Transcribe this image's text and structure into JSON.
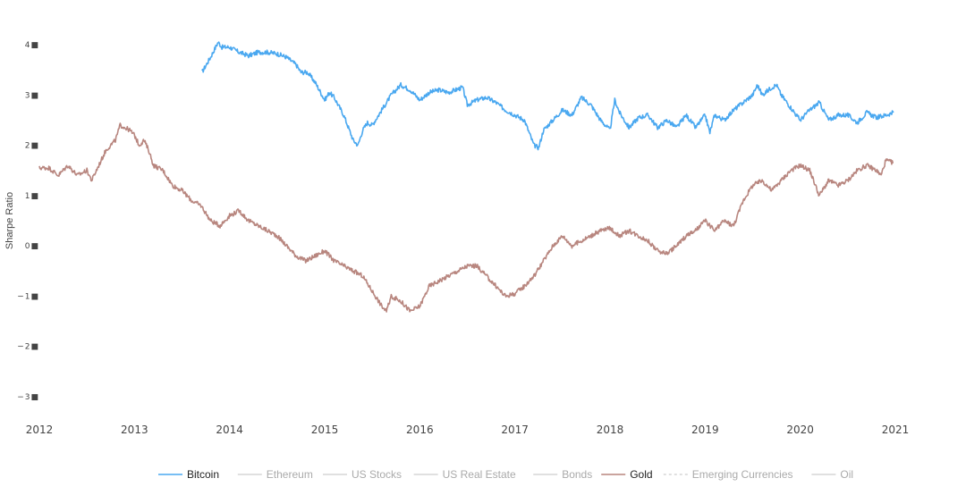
{
  "chart_data": {
    "type": "line",
    "title": "",
    "ylabel": "Sharpe Ratio",
    "xlabel": "",
    "ylim": [
      -3.5,
      4.3
    ],
    "xlim": [
      2012.0,
      2021.0
    ],
    "grid": false,
    "legend_position": "bottom",
    "y_ticks": [
      {
        "value": 4,
        "label": "4■"
      },
      {
        "value": 3,
        "label": "3■"
      },
      {
        "value": 2,
        "label": "2■"
      },
      {
        "value": 1,
        "label": "1■"
      },
      {
        "value": 0,
        "label": "0■"
      },
      {
        "value": -1,
        "label": "−1■"
      },
      {
        "value": -2,
        "label": "−2■"
      },
      {
        "value": -3,
        "label": "−3■"
      }
    ],
    "x_ticks": [
      {
        "value": 2012,
        "label": "2012"
      },
      {
        "value": 2013,
        "label": "2013"
      },
      {
        "value": 2014,
        "label": "2014"
      },
      {
        "value": 2015,
        "label": "2015"
      },
      {
        "value": 2016,
        "label": "2016"
      },
      {
        "value": 2017,
        "label": "2017"
      },
      {
        "value": 2018,
        "label": "2018"
      },
      {
        "value": 2019,
        "label": "2019"
      },
      {
        "value": 2020,
        "label": "2020"
      },
      {
        "value": 2021,
        "label": "2021"
      }
    ],
    "legend": [
      {
        "name": "Bitcoin",
        "color": "#4aa8f0",
        "active": true,
        "dashed": false
      },
      {
        "name": "Ethereum",
        "color": "#d6d6d6",
        "active": false,
        "dashed": false
      },
      {
        "name": "US Stocks",
        "color": "#d6d6d6",
        "active": false,
        "dashed": false
      },
      {
        "name": "US Real Estate",
        "color": "#d6d6d6",
        "active": false,
        "dashed": false
      },
      {
        "name": "Bonds",
        "color": "#d6d6d6",
        "active": false,
        "dashed": false
      },
      {
        "name": "Gold",
        "color": "#b8867f",
        "active": true,
        "dashed": false
      },
      {
        "name": "Emerging Currencies",
        "color": "#d6d6d6",
        "active": false,
        "dashed": true
      },
      {
        "name": "Oil",
        "color": "#d6d6d6",
        "active": false,
        "dashed": false
      }
    ],
    "series": [
      {
        "name": "Bitcoin",
        "color": "#4aa8f0",
        "x": [
          2013.71,
          2013.8,
          2013.88,
          2013.92,
          2014.0,
          2014.1,
          2014.2,
          2014.3,
          2014.4,
          2014.5,
          2014.6,
          2014.7,
          2014.75,
          2014.82,
          2014.9,
          2015.0,
          2015.05,
          2015.1,
          2015.2,
          2015.3,
          2015.35,
          2015.4,
          2015.45,
          2015.5,
          2015.6,
          2015.7,
          2015.8,
          2015.9,
          2016.0,
          2016.1,
          2016.2,
          2016.3,
          2016.45,
          2016.5,
          2016.6,
          2016.7,
          2016.8,
          2016.9,
          2017.0,
          2017.1,
          2017.2,
          2017.25,
          2017.3,
          2017.4,
          2017.5,
          2017.6,
          2017.7,
          2017.8,
          2017.9,
          2018.0,
          2018.05,
          2018.1,
          2018.2,
          2018.3,
          2018.4,
          2018.5,
          2018.6,
          2018.7,
          2018.8,
          2018.9,
          2019.0,
          2019.05,
          2019.1,
          2019.2,
          2019.3,
          2019.4,
          2019.5,
          2019.55,
          2019.6,
          2019.7,
          2019.75,
          2019.8,
          2019.9,
          2020.0,
          2020.1,
          2020.2,
          2020.3,
          2020.4,
          2020.5,
          2020.6,
          2020.7,
          2020.8,
          2020.9,
          2020.98
        ],
        "y": [
          3.45,
          3.75,
          4.05,
          3.95,
          3.95,
          3.85,
          3.78,
          3.85,
          3.85,
          3.82,
          3.75,
          3.6,
          3.45,
          3.45,
          3.25,
          2.9,
          3.05,
          2.95,
          2.6,
          2.1,
          2.0,
          2.3,
          2.45,
          2.4,
          2.7,
          3.0,
          3.2,
          3.1,
          2.9,
          3.05,
          3.1,
          3.05,
          3.15,
          2.8,
          2.9,
          2.95,
          2.85,
          2.7,
          2.6,
          2.5,
          2.0,
          1.95,
          2.3,
          2.5,
          2.7,
          2.6,
          2.95,
          2.8,
          2.5,
          2.3,
          2.9,
          2.65,
          2.35,
          2.55,
          2.6,
          2.35,
          2.5,
          2.35,
          2.6,
          2.35,
          2.6,
          2.25,
          2.6,
          2.5,
          2.7,
          2.85,
          3.0,
          3.2,
          3.0,
          3.15,
          3.2,
          3.0,
          2.75,
          2.5,
          2.7,
          2.85,
          2.5,
          2.6,
          2.6,
          2.45,
          2.65,
          2.55,
          2.6,
          2.65
        ]
      },
      {
        "name": "Gold",
        "color": "#b8867f",
        "x": [
          2012.0,
          2012.1,
          2012.2,
          2012.3,
          2012.4,
          2012.5,
          2012.55,
          2012.6,
          2012.7,
          2012.75,
          2012.8,
          2012.85,
          2012.9,
          2012.95,
          2013.0,
          2013.05,
          2013.1,
          2013.15,
          2013.2,
          2013.3,
          2013.4,
          2013.5,
          2013.6,
          2013.7,
          2013.8,
          2013.9,
          2014.0,
          2014.1,
          2014.2,
          2014.3,
          2014.4,
          2014.5,
          2014.6,
          2014.7,
          2014.8,
          2014.9,
          2015.0,
          2015.1,
          2015.2,
          2015.3,
          2015.4,
          2015.5,
          2015.6,
          2015.65,
          2015.7,
          2015.8,
          2015.9,
          2016.0,
          2016.1,
          2016.2,
          2016.3,
          2016.4,
          2016.5,
          2016.6,
          2016.7,
          2016.8,
          2016.9,
          2017.0,
          2017.1,
          2017.2,
          2017.3,
          2017.4,
          2017.5,
          2017.6,
          2017.7,
          2017.8,
          2017.9,
          2018.0,
          2018.1,
          2018.2,
          2018.3,
          2018.4,
          2018.5,
          2018.6,
          2018.7,
          2018.8,
          2018.9,
          2019.0,
          2019.1,
          2019.2,
          2019.3,
          2019.4,
          2019.5,
          2019.6,
          2019.7,
          2019.8,
          2019.9,
          2020.0,
          2020.1,
          2020.2,
          2020.3,
          2020.4,
          2020.5,
          2020.6,
          2020.7,
          2020.8,
          2020.85,
          2020.9,
          2020.98
        ],
        "y": [
          1.55,
          1.55,
          1.4,
          1.6,
          1.4,
          1.5,
          1.3,
          1.5,
          1.9,
          2.0,
          2.1,
          2.4,
          2.35,
          2.3,
          2.2,
          2.0,
          2.1,
          1.9,
          1.6,
          1.5,
          1.2,
          1.1,
          0.9,
          0.8,
          0.5,
          0.4,
          0.6,
          0.7,
          0.5,
          0.4,
          0.3,
          0.2,
          0.0,
          -0.2,
          -0.3,
          -0.2,
          -0.1,
          -0.3,
          -0.4,
          -0.5,
          -0.6,
          -0.9,
          -1.2,
          -1.3,
          -1.0,
          -1.1,
          -1.3,
          -1.2,
          -0.8,
          -0.7,
          -0.6,
          -0.5,
          -0.4,
          -0.4,
          -0.6,
          -0.8,
          -1.0,
          -0.95,
          -0.8,
          -0.6,
          -0.3,
          0.0,
          0.2,
          0.0,
          0.1,
          0.2,
          0.3,
          0.35,
          0.2,
          0.3,
          0.2,
          0.1,
          -0.1,
          -0.15,
          0.0,
          0.2,
          0.3,
          0.5,
          0.3,
          0.5,
          0.4,
          0.9,
          1.2,
          1.3,
          1.1,
          1.3,
          1.5,
          1.6,
          1.5,
          1.0,
          1.3,
          1.2,
          1.3,
          1.5,
          1.6,
          1.5,
          1.4,
          1.7,
          1.65
        ]
      }
    ]
  }
}
